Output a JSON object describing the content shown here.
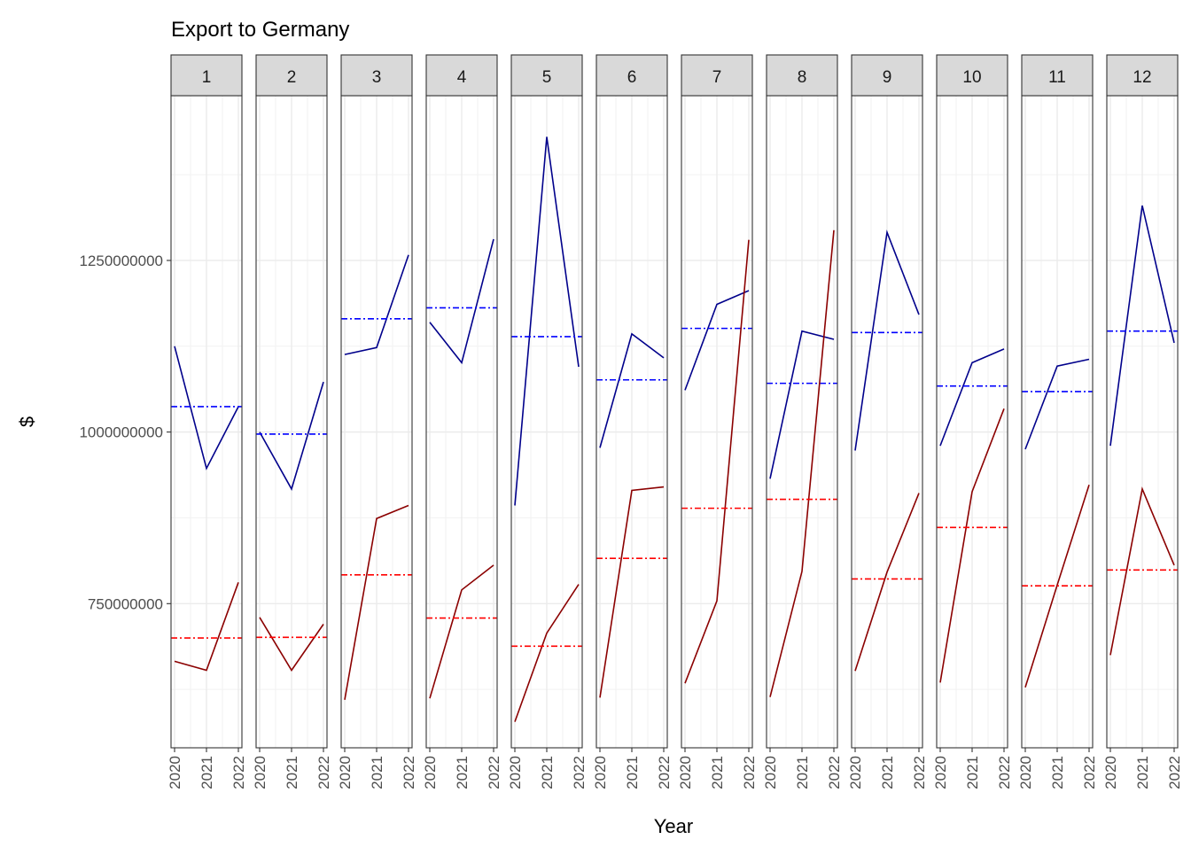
{
  "chart_data": {
    "type": "line",
    "title": "Export to Germany",
    "xlabel": "Year",
    "ylabel": "$",
    "facet_labels": [
      "1",
      "2",
      "3",
      "4",
      "5",
      "6",
      "7",
      "8",
      "9",
      "10",
      "11",
      "12"
    ],
    "x": [
      2020,
      2021,
      2022
    ],
    "x_tick_labels": [
      "2020",
      "2021",
      "2022"
    ],
    "y_ticks": [
      750000000,
      1000000000,
      1250000000
    ],
    "y_tick_labels": [
      "750000000",
      "1000000000",
      "1250000000"
    ],
    "ylim": [
      540000000,
      1490000000
    ],
    "grid": true,
    "legend": "none",
    "series": [
      {
        "color": "#00008B",
        "values": [
          [
            1125000000,
            947000000,
            1037000000
          ],
          [
            1000000000,
            917000000,
            1073000000
          ],
          [
            1113000000,
            1123000000,
            1258000000
          ],
          [
            1160000000,
            1101000000,
            1281000000
          ],
          [
            893000000,
            1430000000,
            1095000000
          ],
          [
            977000000,
            1143000000,
            1108000000
          ],
          [
            1061000000,
            1186000000,
            1206000000
          ],
          [
            932000000,
            1147000000,
            1135000000
          ],
          [
            973000000,
            1291000000,
            1171000000
          ],
          [
            980000000,
            1101000000,
            1121000000
          ],
          [
            975000000,
            1096000000,
            1106000000
          ],
          [
            980000000,
            1330000000,
            1130000000
          ]
        ],
        "mean_values": [
          1037000000,
          997000000,
          1165000000,
          1181000000,
          1139000000,
          1076000000,
          1151000000,
          1071000000,
          1145000000,
          1067000000,
          1059000000,
          1147000000
        ],
        "mean_color": "#0000FF"
      },
      {
        "color": "#8B0000",
        "values": [
          [
            666000000,
            653000000,
            781000000
          ],
          [
            730000000,
            653000000,
            720000000
          ],
          [
            610000000,
            874000000,
            893000000
          ],
          [
            612000000,
            770000000,
            806000000
          ],
          [
            578000000,
            707000000,
            778000000
          ],
          [
            613000000,
            915000000,
            920000000
          ],
          [
            634000000,
            754000000,
            1280000000
          ],
          [
            614000000,
            797000000,
            1294000000
          ],
          [
            652000000,
            796000000,
            911000000
          ],
          [
            635000000,
            913000000,
            1034000000
          ],
          [
            628000000,
            777000000,
            923000000
          ],
          [
            675000000,
            917000000,
            806000000
          ]
        ],
        "mean_values": [
          700000000,
          701000000,
          792000000,
          729000000,
          688000000,
          816000000,
          889000000,
          902000000,
          786000000,
          861000000,
          776000000,
          799000000
        ],
        "mean_color": "#FF0000"
      }
    ]
  }
}
